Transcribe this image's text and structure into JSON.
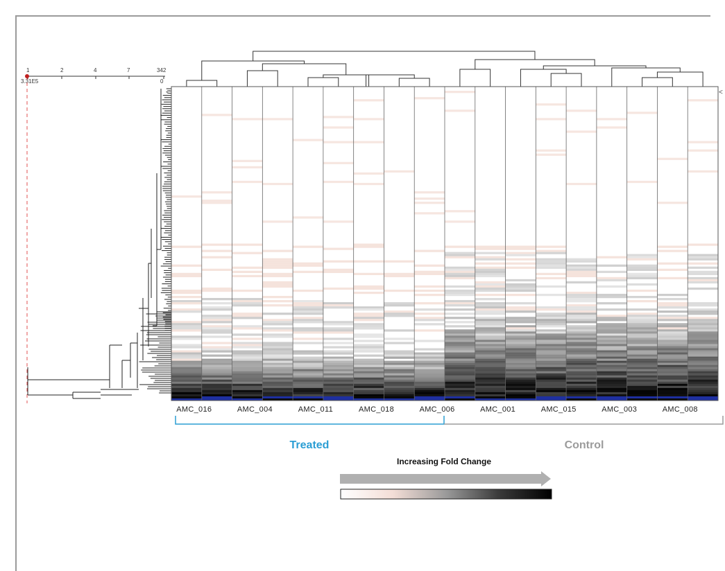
{
  "ruler": {
    "ticks": [
      "1",
      "2",
      "4",
      "7",
      "342"
    ],
    "zero_label": "0",
    "cut_label": "3.31E5"
  },
  "columns": {
    "labels": [
      "AMC_016",
      "AMC_004",
      "AMC_011",
      "AMC_018",
      "AMC_006",
      "AMC_001",
      "AMC_015",
      "AMC_003",
      "AMC_008"
    ],
    "count": 18
  },
  "groups": {
    "treated": {
      "label": "Treated",
      "color": "#2b9ed4"
    },
    "control": {
      "label": "Control",
      "color": "#9b9b9b"
    }
  },
  "legend": {
    "title": "Increasing Fold Change",
    "arrow_color": "#b0b0b0",
    "gradient": [
      "#ffffff",
      "#f3ddd6",
      "#9a9a9a",
      "#3a3a3a",
      "#000000"
    ]
  },
  "chart_data": {
    "type": "heatmap",
    "x_labels": [
      "AMC_016",
      "AMC_004",
      "AMC_011",
      "AMC_018",
      "AMC_006",
      "AMC_001",
      "AMC_015",
      "AMC_003",
      "AMC_008"
    ],
    "groups": [
      {
        "name": "Treated",
        "n_columns": 9
      },
      {
        "name": "Control",
        "n_columns": 9
      }
    ],
    "n_rows": 342,
    "legend": "Increasing Fold Change",
    "colors": [
      "#ffffff",
      "#f3ddd6",
      "#9a9a9a",
      "#000000",
      "#1e2fa0"
    ]
  }
}
